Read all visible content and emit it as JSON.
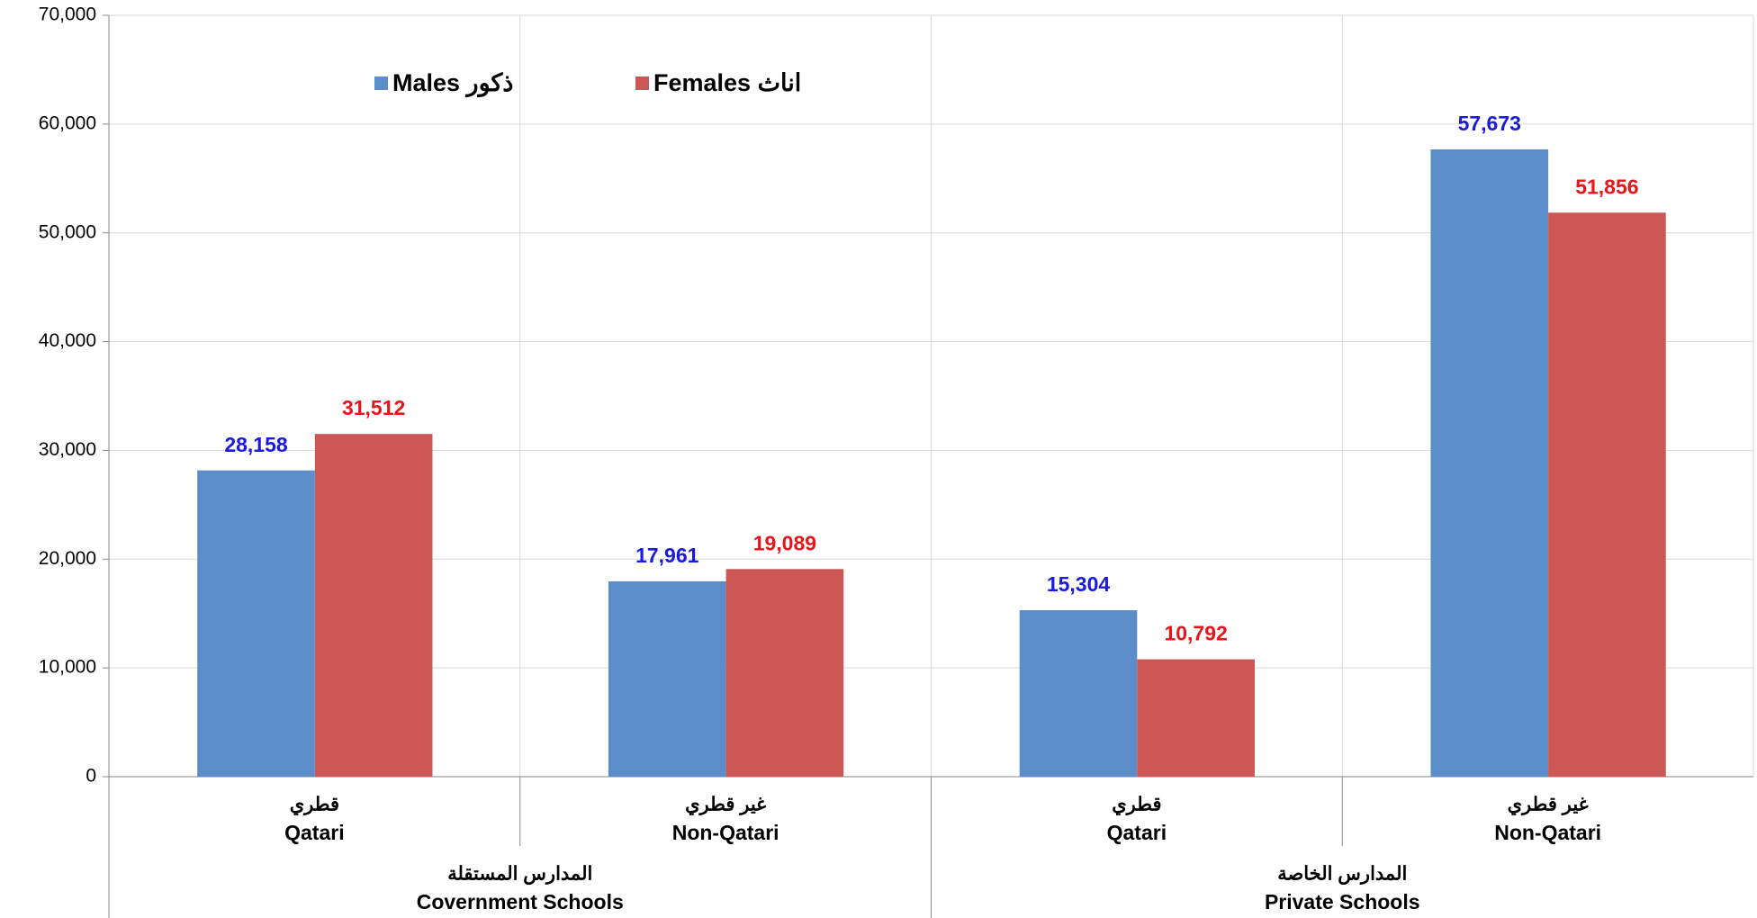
{
  "chart_data": {
    "type": "bar",
    "categories": [
      "Qatari",
      "Non-Qatari",
      "Qatari",
      "Non-Qatari"
    ],
    "categories_ar": [
      "قطري",
      "غير قطري",
      "قطري",
      "غير قطري"
    ],
    "groups": [
      {
        "name": "Covernment Schools",
        "name_ar": "المدارس المستقلة"
      },
      {
        "name": "Private Schools",
        "name_ar": "المدارس الخاصة"
      }
    ],
    "series": [
      {
        "name": "Males ذكور",
        "color": "#5b8dcb",
        "label_color": "#1a1add",
        "values": [
          28158,
          17961,
          15304,
          57673
        ],
        "value_labels": [
          "28,158",
          "17,961",
          "15,304",
          "57,673"
        ]
      },
      {
        "name": "Females اناث",
        "color": "#cd5755",
        "label_color": "#e8141a",
        "values": [
          31512,
          19089,
          10792,
          51856
        ],
        "value_labels": [
          "31,512",
          "19,089",
          "10,792",
          "51,856"
        ]
      }
    ],
    "ylim": [
      0,
      70000
    ],
    "yticks": [
      0,
      {
        "value": 10000,
        "label": "10,000"
      },
      {
        "value": 20000,
        "label": "20,000"
      },
      {
        "value": 30000,
        "label": "30,000"
      },
      {
        "value": 40000,
        "label": "40,000"
      },
      {
        "value": 50000,
        "label": "50,000"
      },
      {
        "value": 60000,
        "label": "60,000"
      },
      {
        "value": 70000,
        "label": "70,000"
      }
    ],
    "grid": true
  }
}
